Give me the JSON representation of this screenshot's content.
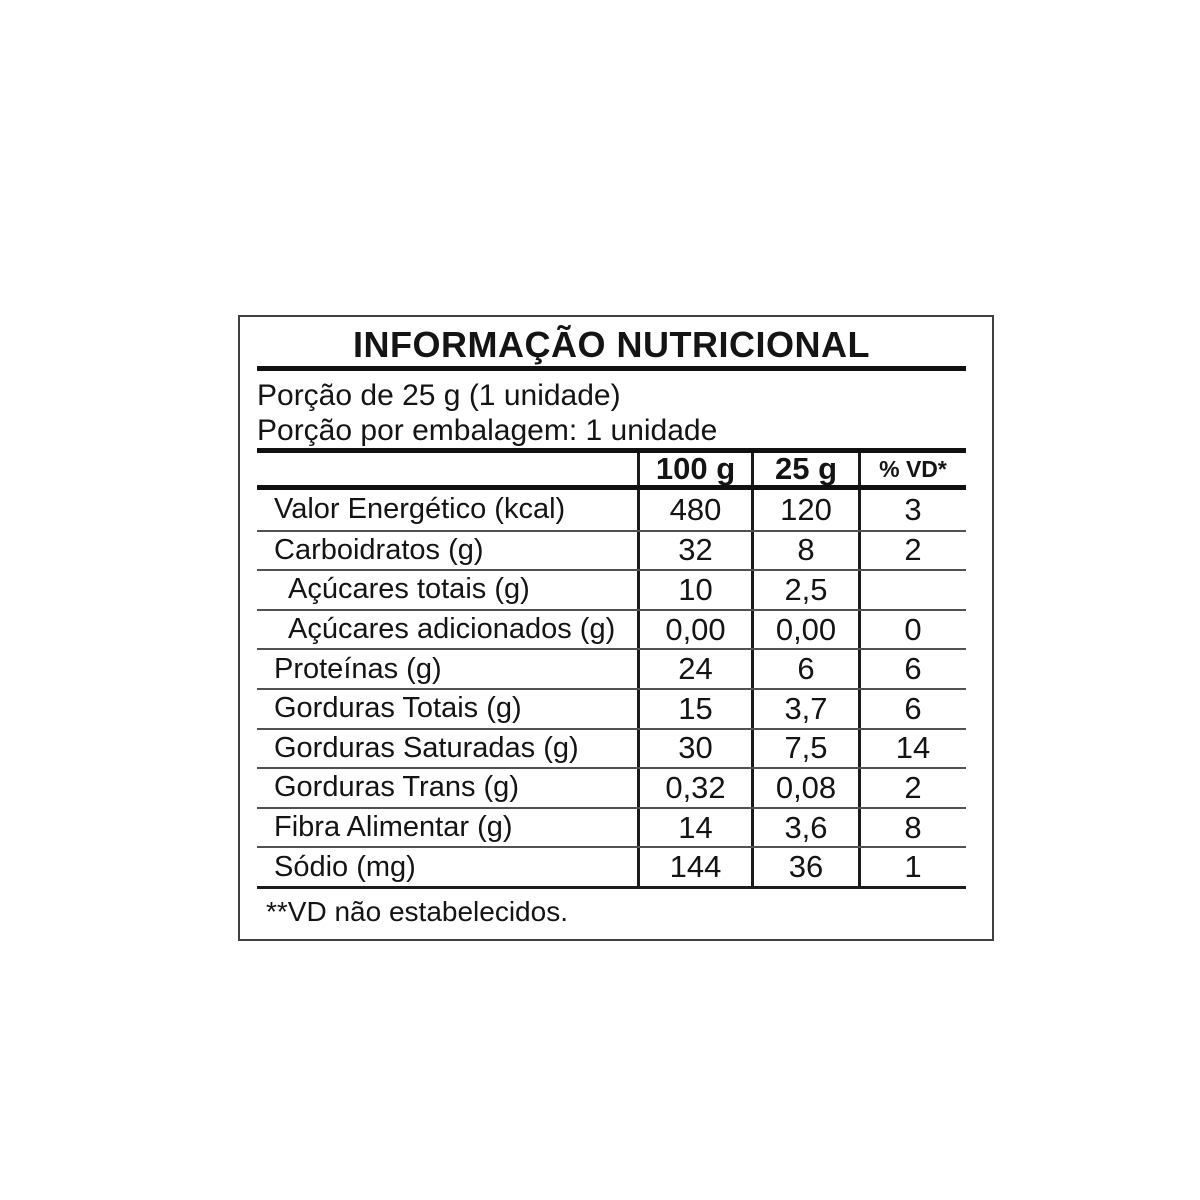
{
  "page": {
    "background": "#ffffff"
  },
  "panel": {
    "title": "INFORMAÇÃO NUTRICIONAL",
    "serving": {
      "line1": "Porção de 25 g (1 unidade)",
      "line2": "Porção por embalagem: 1 unidade"
    },
    "columns": {
      "per100g": "100 g",
      "per25g": "25 g",
      "pct_vd": "% VD*"
    },
    "rows": [
      {
        "label": "Valor Energético (kcal)",
        "per100g": "480",
        "per25g": "120",
        "pct_vd": "3"
      },
      {
        "label": "Carboidratos (g)",
        "per100g": "32",
        "per25g": "8",
        "pct_vd": "2"
      },
      {
        "label": "Açúcares totais (g)",
        "per100g": "10",
        "per25g": "2,5",
        "pct_vd": ""
      },
      {
        "label": "Açúcares adicionados (g)",
        "per100g": "0,00",
        "per25g": "0,00",
        "pct_vd": "0"
      },
      {
        "label": "Proteínas (g)",
        "per100g": "24",
        "per25g": "6",
        "pct_vd": "6"
      },
      {
        "label": "Gorduras Totais (g)",
        "per100g": "15",
        "per25g": "3,7",
        "pct_vd": "6"
      },
      {
        "label": "Gorduras Saturadas (g)",
        "per100g": "30",
        "per25g": "7,5",
        "pct_vd": "14"
      },
      {
        "label": "Gorduras Trans (g)",
        "per100g": "0,32",
        "per25g": "0,08",
        "pct_vd": "2"
      },
      {
        "label": "Fibra Alimentar (g)",
        "per100g": "14",
        "per25g": "3,6",
        "pct_vd": "8"
      },
      {
        "label": "Sódio (mg)",
        "per100g": "144",
        "per25g": "36",
        "pct_vd": "1"
      }
    ],
    "footnote": "**VD não estabelecidos.",
    "colors": {
      "text": "#141414",
      "thick_rule": "#111111",
      "thin_rule": "#515151",
      "border": "#404040",
      "background": "#ffffff"
    }
  }
}
